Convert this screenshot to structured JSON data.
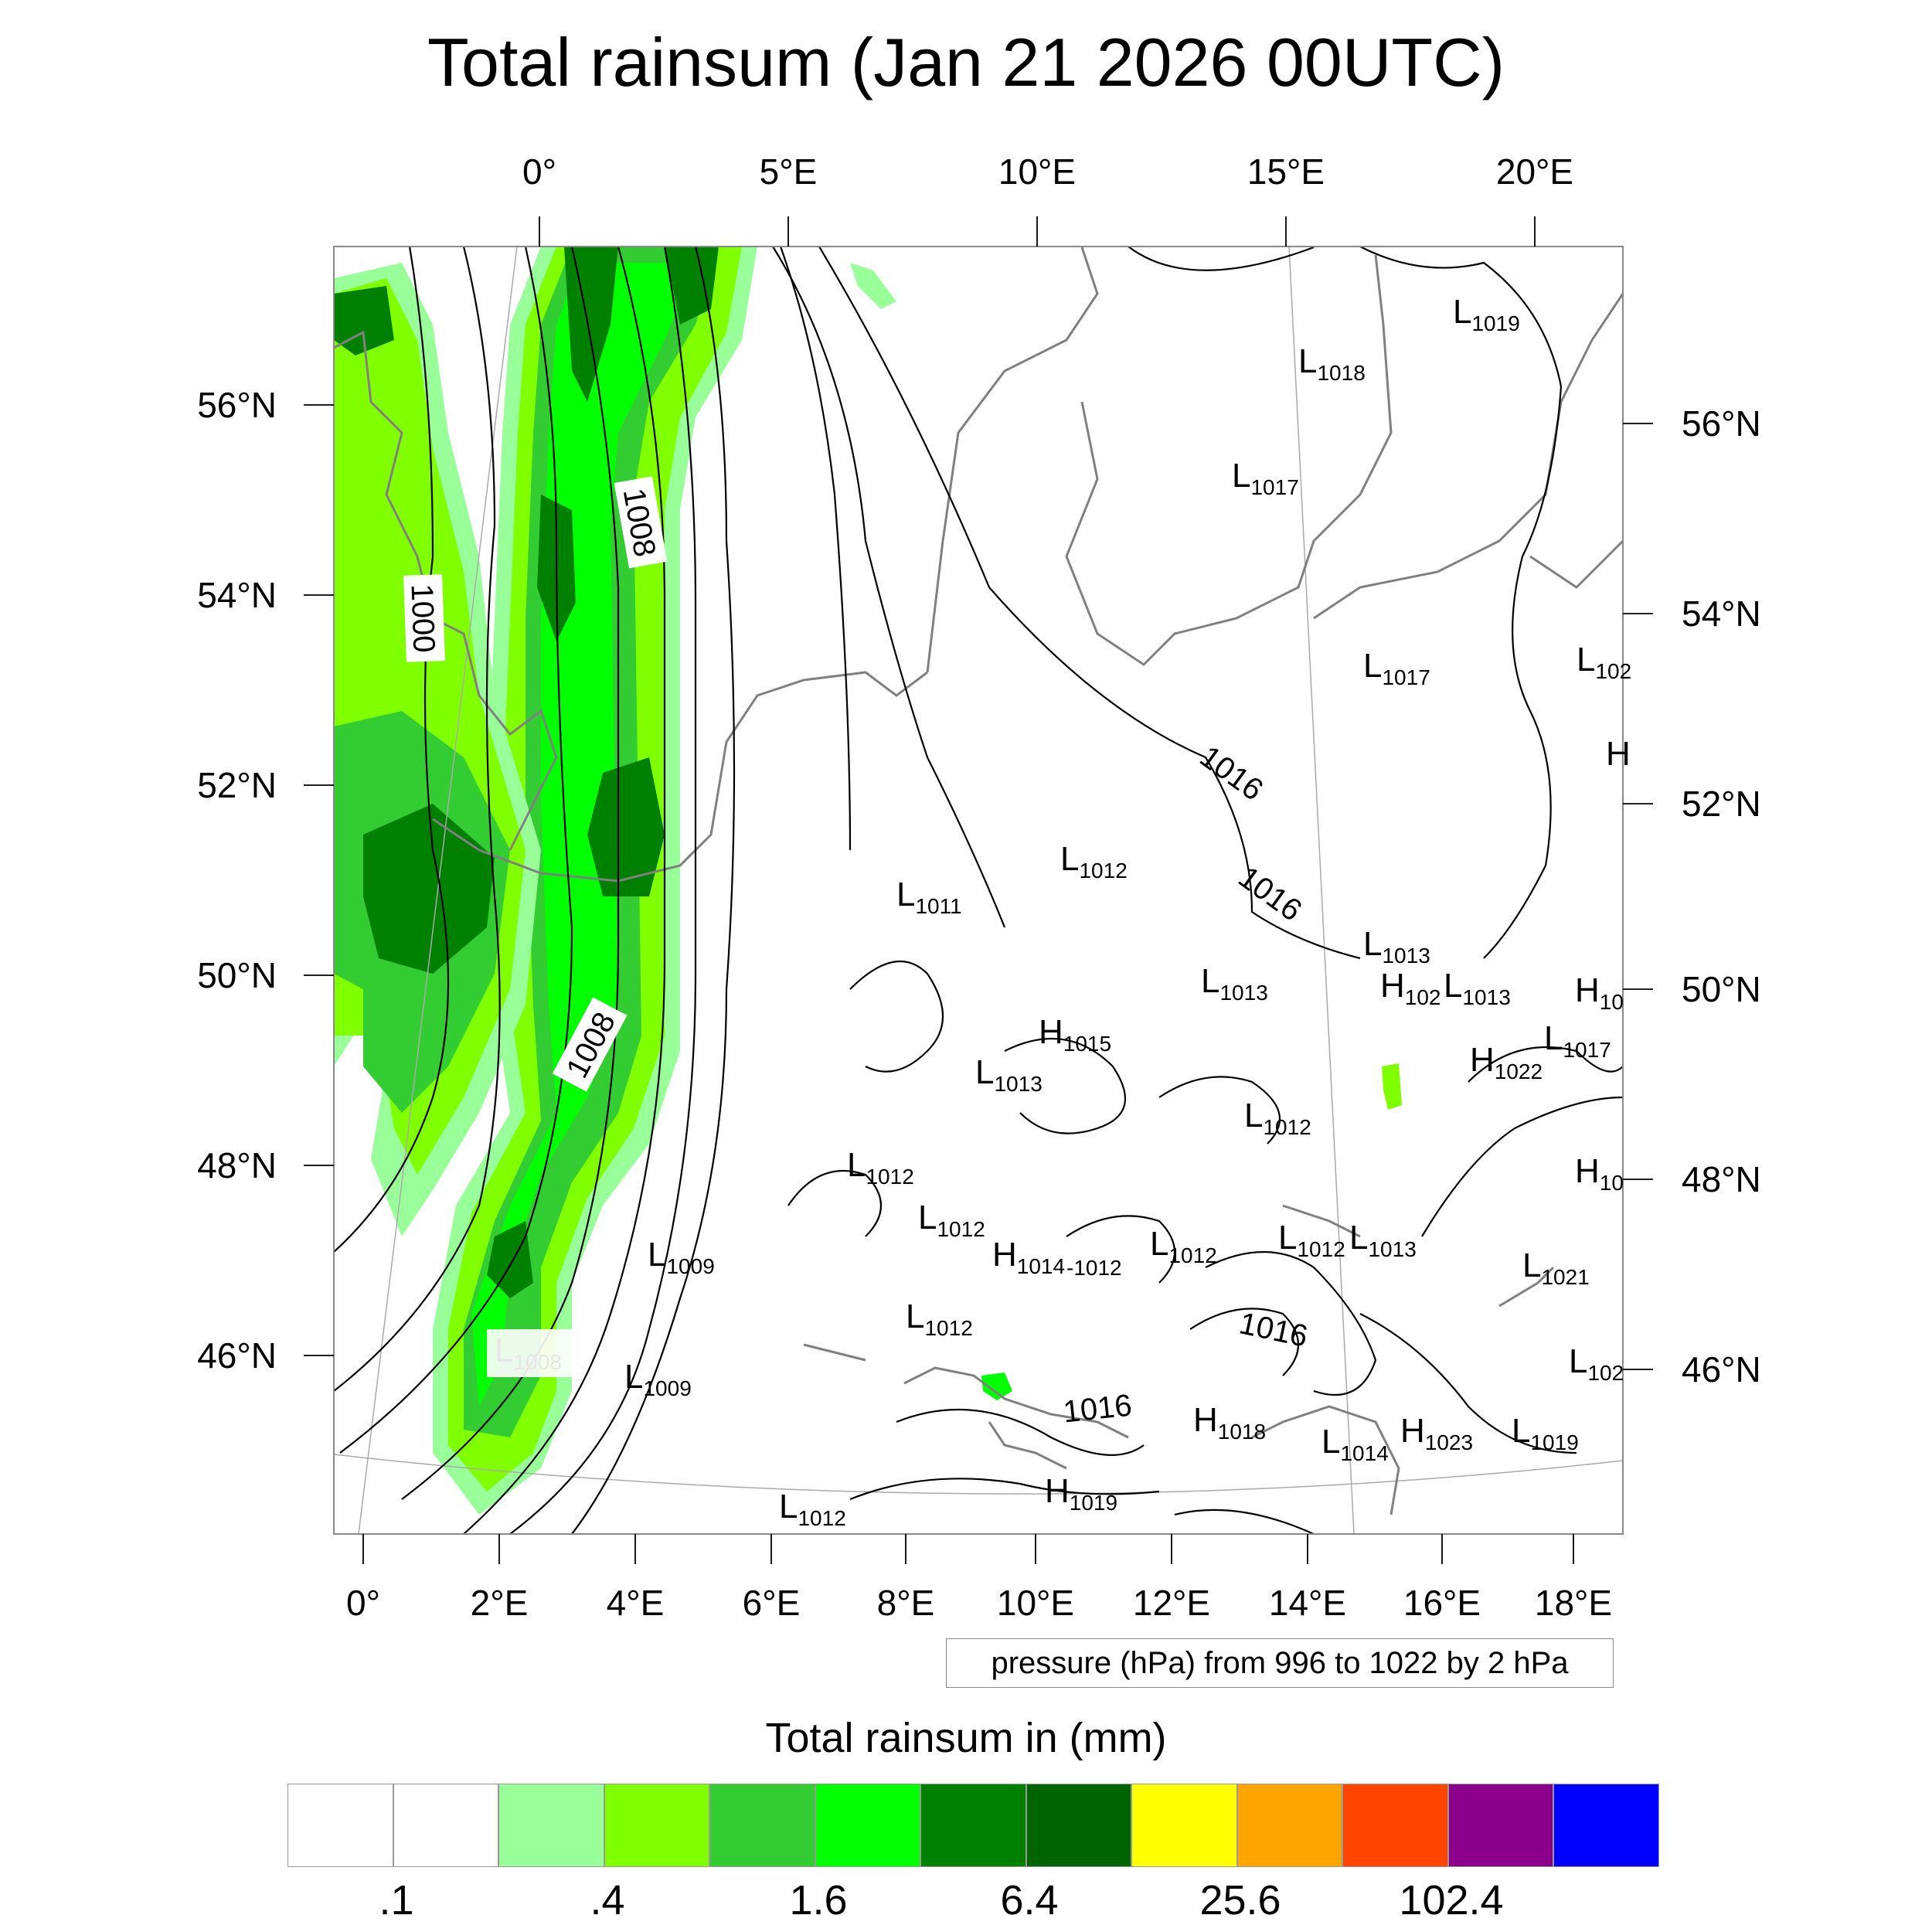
{
  "title": "Total rainsum (Jan 21 2026 00UTC)",
  "top_lon_labels": [
    "0°",
    "5°E",
    "10°E",
    "15°E",
    "20°E"
  ],
  "left_lat_labels": [
    "56°N",
    "54°N",
    "52°N",
    "50°N",
    "48°N",
    "46°N"
  ],
  "right_lat_labels": [
    "56°N",
    "54°N",
    "52°N",
    "50°N",
    "48°N",
    "46°N"
  ],
  "bottom_lon_labels": [
    "0°",
    "2°E",
    "4°E",
    "6°E",
    "8°E",
    "10°E",
    "12°E",
    "14°E",
    "16°E",
    "18°E"
  ],
  "contour_labels": [
    "1000",
    "1008",
    "1008",
    "1016",
    "1016",
    "1016",
    "1016"
  ],
  "pressure_centers": [
    {
      "type": "L",
      "value": "1019"
    },
    {
      "type": "L",
      "value": "1018"
    },
    {
      "type": "L",
      "value": "1017"
    },
    {
      "type": "L",
      "value": "1017"
    },
    {
      "type": "L",
      "value": "102"
    },
    {
      "type": "H",
      "value": ""
    },
    {
      "type": "L",
      "value": "1012"
    },
    {
      "type": "L",
      "value": "1011"
    },
    {
      "type": "L",
      "value": "1013"
    },
    {
      "type": "L",
      "value": "1013"
    },
    {
      "type": "H",
      "value": "102"
    },
    {
      "type": "L",
      "value": "1013"
    },
    {
      "type": "H",
      "value": "10"
    },
    {
      "type": "H",
      "value": "1015"
    },
    {
      "type": "L",
      "value": "1017"
    },
    {
      "type": "L",
      "value": "1013"
    },
    {
      "type": "H",
      "value": "1022"
    },
    {
      "type": "L",
      "value": "1012"
    },
    {
      "type": "L",
      "value": "1012"
    },
    {
      "type": "H",
      "value": "10"
    },
    {
      "type": "L",
      "value": "1012"
    },
    {
      "type": "L",
      "value": "1009"
    },
    {
      "type": "H",
      "value": "1014"
    },
    {
      "type": "L",
      "value": "1012"
    },
    {
      "type": "L",
      "value": "1012"
    },
    {
      "type": "L",
      "value": "1013"
    },
    {
      "type": "L",
      "value": "1021"
    },
    {
      "type": "L",
      "value": "1012"
    },
    {
      "type": "L",
      "value": "1008"
    },
    {
      "type": "L",
      "value": "1009"
    },
    {
      "type": "L",
      "value": "102"
    },
    {
      "type": "H",
      "value": "1018"
    },
    {
      "type": "L",
      "value": "1014"
    },
    {
      "type": "H",
      "value": "1023"
    },
    {
      "type": "L",
      "value": "1019"
    },
    {
      "type": "H",
      "value": "1019"
    },
    {
      "type": "L",
      "value": "1012"
    }
  ],
  "stray_label": "-1012",
  "pressure_note": "pressure (hPa) from 996 to 1022 by 2 hPa",
  "colorbar": {
    "title": "Total rainsum in (mm)",
    "colors": [
      "#ffffff",
      "#ffffff",
      "#99ff99",
      "#80ff00",
      "#33cc33",
      "#00ff00",
      "#008000",
      "#006400",
      "#ffff00",
      "#ffa500",
      "#ff4500",
      "#8b008b",
      "#0000ff"
    ],
    "tick_labels": [
      ".1",
      ".4",
      "1.6",
      "6.4",
      "25.6",
      "102.4"
    ]
  },
  "rain_colors": {
    "light": "#99ff99",
    "lime": "#80ff00",
    "mid": "#33cc33",
    "bright": "#00ff00",
    "dark": "#008000",
    "darkest": "#006400"
  }
}
